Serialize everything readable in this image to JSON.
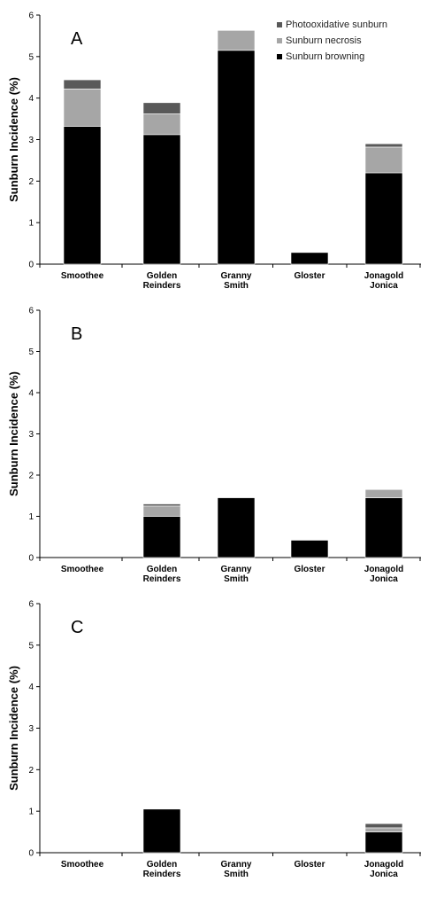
{
  "chart_data": [
    {
      "type": "bar",
      "stacked": true,
      "panel_label": "A",
      "ylabel": "Sunburn Incidence (%)",
      "ylim": [
        0,
        6
      ],
      "yticks": [
        "0",
        "1",
        "2",
        "3",
        "4",
        "5",
        "6"
      ],
      "categories": [
        "Smoothee",
        "Golden Reinders",
        "Granny Smith",
        "Gloster",
        "Jonagold Jonica"
      ],
      "series": [
        {
          "name": "Sunburn browning",
          "color": "#000000",
          "values": [
            3.32,
            3.12,
            5.15,
            0.28,
            2.2
          ]
        },
        {
          "name": "Sunburn necrosis",
          "color": "#a6a6a6",
          "values": [
            0.9,
            0.5,
            0.48,
            0,
            0.62
          ]
        },
        {
          "name": "Photooxidative sunburn",
          "color": "#595959",
          "values": [
            0.22,
            0.27,
            0,
            0,
            0.08
          ]
        }
      ],
      "legend": [
        "Photooxidative sunburn",
        "Sunburn necrosis",
        "Sunburn browning"
      ]
    },
    {
      "type": "bar",
      "stacked": true,
      "panel_label": "B",
      "ylabel": "Sunburn Incidence (%)",
      "ylim": [
        0,
        6
      ],
      "yticks": [
        "0",
        "1",
        "2",
        "3",
        "4",
        "5",
        "6"
      ],
      "categories": [
        "Smoothee",
        "Golden Reinders",
        "Granny Smith",
        "Gloster",
        "Jonagold Jonica"
      ],
      "series": [
        {
          "name": "Sunburn browning",
          "color": "#000000",
          "values": [
            0,
            1.0,
            1.45,
            0.42,
            1.45
          ]
        },
        {
          "name": "Sunburn necrosis",
          "color": "#a6a6a6",
          "values": [
            0,
            0.25,
            0,
            0,
            0.2
          ]
        },
        {
          "name": "Photooxidative sunburn",
          "color": "#595959",
          "values": [
            0,
            0.05,
            0,
            0,
            0
          ]
        }
      ]
    },
    {
      "type": "bar",
      "stacked": true,
      "panel_label": "C",
      "ylabel": "Sunburn Incidence (%)",
      "ylim": [
        0,
        6
      ],
      "yticks": [
        "0",
        "1",
        "2",
        "3",
        "4",
        "5",
        "6"
      ],
      "categories": [
        "Smoothee",
        "Golden Reinders",
        "Granny Smith",
        "Gloster",
        "Jonagold Jonica"
      ],
      "series": [
        {
          "name": "Sunburn browning",
          "color": "#000000",
          "values": [
            0,
            1.05,
            0,
            0,
            0.5
          ]
        },
        {
          "name": "Sunburn necrosis",
          "color": "#a6a6a6",
          "values": [
            0,
            0,
            0,
            0,
            0.1
          ]
        },
        {
          "name": "Photooxidative sunburn",
          "color": "#595959",
          "values": [
            0,
            0,
            0,
            0,
            0.1
          ]
        }
      ]
    }
  ]
}
